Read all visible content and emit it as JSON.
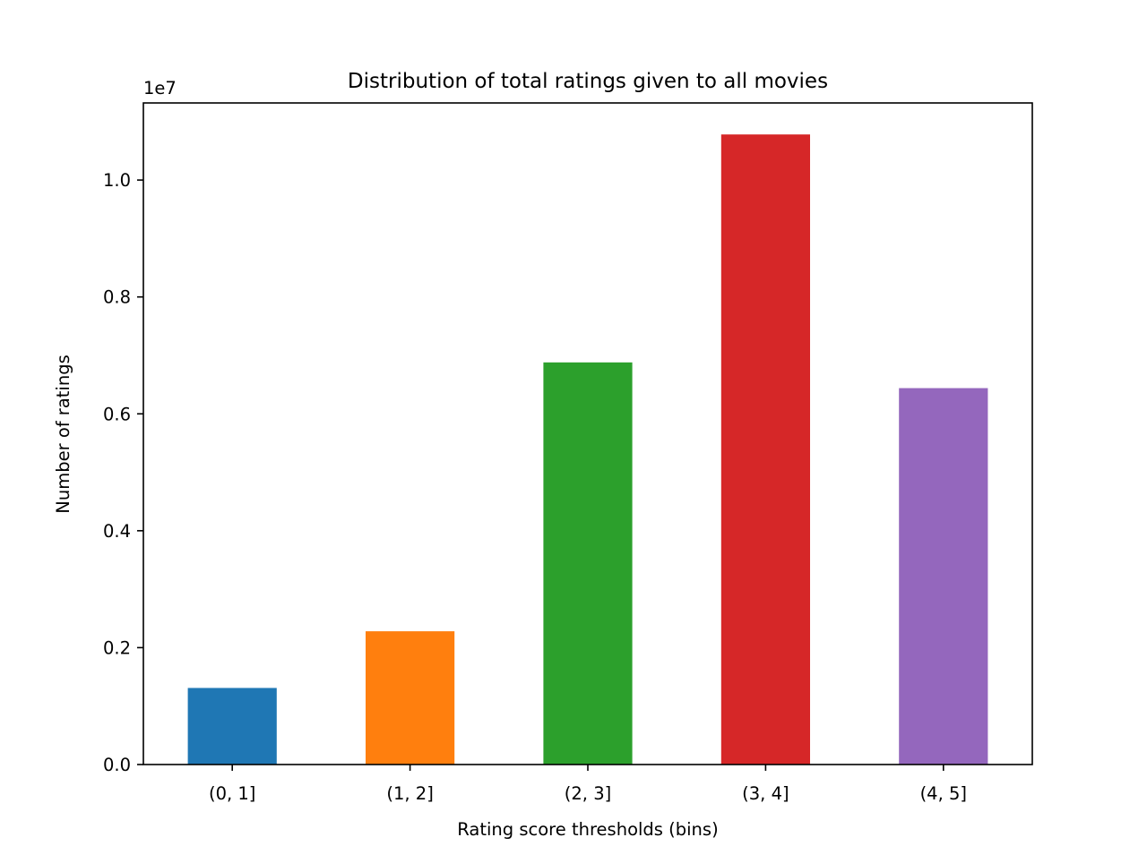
{
  "chart_data": {
    "type": "bar",
    "title": "Distribution of total ratings given to all movies",
    "xlabel": "Rating score thresholds (bins)",
    "ylabel": "Number of ratings",
    "y_offset_label": "1e7",
    "categories": [
      "(0, 1]",
      "(1, 2]",
      "(2, 3]",
      "(3, 4]",
      "(4, 5]"
    ],
    "values": [
      1310000,
      2280000,
      6880000,
      10780000,
      6440000
    ],
    "colors": [
      "#1f77b4",
      "#ff7f0e",
      "#2ca02c",
      "#d62728",
      "#9467bd"
    ],
    "ylim": [
      0,
      11319000
    ],
    "yticks": [
      0,
      2000000,
      4000000,
      6000000,
      8000000,
      10000000
    ],
    "ytick_labels": [
      "0.0",
      "0.2",
      "0.4",
      "0.6",
      "0.8",
      "1.0"
    ],
    "grid": false,
    "legend": "none"
  }
}
